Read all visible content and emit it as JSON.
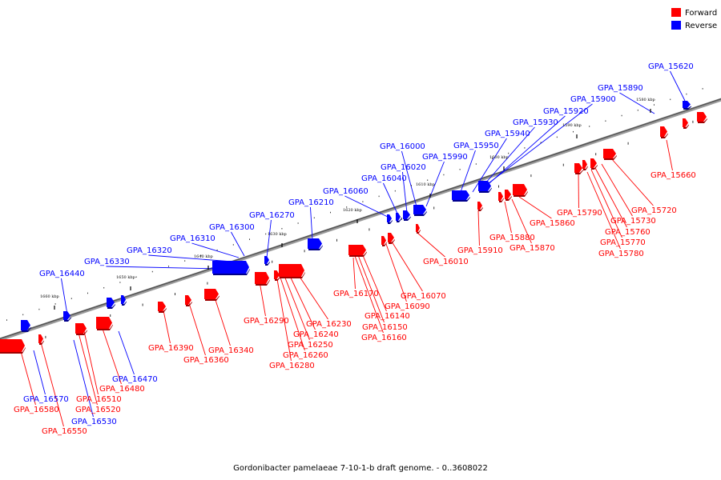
{
  "legend": [
    {
      "label": "Forward",
      "color": "#ff0000"
    },
    {
      "label": "Reverse",
      "color": "#0000ff"
    }
  ],
  "caption": "Gordonibacter pamelaeae 7-10-1-b draft genome. - 0..3608022",
  "scale": {
    "unit": "kbp",
    "ticks": [
      "1580 kbp",
      "1590 kbp",
      "1600 kbp",
      "1610 kbp",
      "1620 kbp",
      "1630 kbp",
      "1640 kbp",
      "1650 kbp",
      "1660 kbp"
    ]
  },
  "genes_reverse": [
    "GPA_15620",
    "GPA_15890",
    "GPA_15900",
    "GPA_15920",
    "GPA_15930",
    "GPA_15940",
    "GPA_15950",
    "GPA_15990",
    "GPA_16000",
    "GPA_16020",
    "GPA_16040",
    "GPA_16060",
    "GPA_16210",
    "GPA_16270",
    "GPA_16300",
    "GPA_16310",
    "GPA_16320",
    "GPA_16330",
    "GPA_16440",
    "GPA_16470",
    "GPA_16530",
    "GPA_16570"
  ],
  "genes_forward": [
    "GPA_15660",
    "GPA_15720",
    "GPA_15730",
    "GPA_15760",
    "GPA_15770",
    "GPA_15780",
    "GPA_15790",
    "GPA_15860",
    "GPA_15870",
    "GPA_15880",
    "GPA_15910",
    "GPA_16010",
    "GPA_16070",
    "GPA_16090",
    "GPA_16140",
    "GPA_16150",
    "GPA_16160",
    "GPA_16170",
    "GPA_16230",
    "GPA_16240",
    "GPA_16250",
    "GPA_16260",
    "GPA_16280",
    "GPA_16290",
    "GPA_16340",
    "GPA_16360",
    "GPA_16390",
    "GPA_16480",
    "GPA_16510",
    "GPA_16520",
    "GPA_16550",
    "GPA_16580"
  ]
}
